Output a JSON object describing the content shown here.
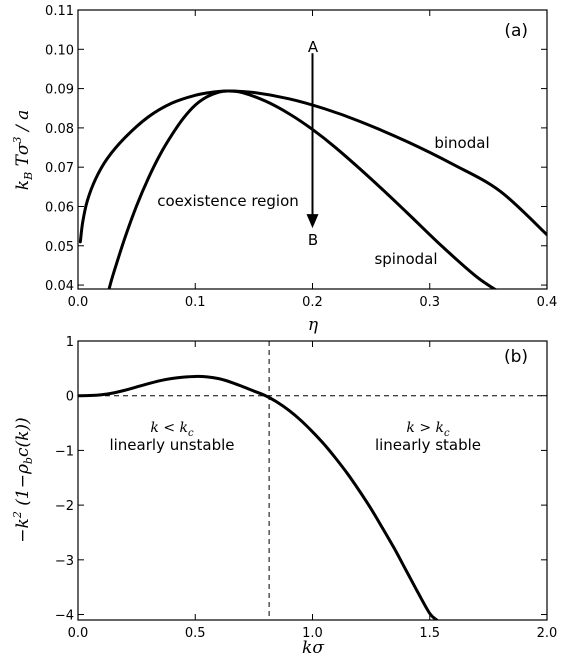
{
  "chart_data": [
    {
      "type": "line",
      "panel_label": "(a)",
      "xlabel": "η",
      "ylabel": "k_B T σ^3 / a",
      "xlim": [
        0.0,
        0.4
      ],
      "ylim": [
        0.039,
        0.11
      ],
      "xticks": [
        "0.0",
        "0.1",
        "0.2",
        "0.3",
        "0.4"
      ],
      "xtick_values": [
        0.0,
        0.1,
        0.2,
        0.3,
        0.4
      ],
      "yticks": [
        "0.04",
        "0.05",
        "0.06",
        "0.07",
        "0.08",
        "0.09",
        "0.10",
        "0.11"
      ],
      "ytick_values": [
        0.04,
        0.05,
        0.06,
        0.07,
        0.08,
        0.09,
        0.1,
        0.11
      ],
      "grid": false,
      "series": [
        {
          "name": "binodal",
          "x": [
            0.002,
            0.004,
            0.008,
            0.015,
            0.025,
            0.04,
            0.06,
            0.08,
            0.1,
            0.115,
            0.128,
            0.15,
            0.18,
            0.21,
            0.24,
            0.28,
            0.32,
            0.36,
            0.4
          ],
          "y": [
            0.051,
            0.056,
            0.0615,
            0.067,
            0.0722,
            0.0775,
            0.0828,
            0.0863,
            0.0883,
            0.0891,
            0.0894,
            0.089,
            0.0874,
            0.0849,
            0.0817,
            0.0766,
            0.0707,
            0.0639,
            0.0528
          ]
        },
        {
          "name": "spinodal",
          "x": [
            0.0265,
            0.03,
            0.04,
            0.05,
            0.06,
            0.07,
            0.08,
            0.09,
            0.1,
            0.11,
            0.12,
            0.128,
            0.14,
            0.16,
            0.18,
            0.2,
            0.22,
            0.25,
            0.28,
            0.31,
            0.34,
            0.36
          ],
          "y": [
            0.039,
            0.0427,
            0.052,
            0.0602,
            0.0672,
            0.0732,
            0.0782,
            0.0825,
            0.0858,
            0.0879,
            0.0891,
            0.0894,
            0.089,
            0.0868,
            0.0836,
            0.0796,
            0.0749,
            0.067,
            0.0586,
            0.05,
            0.0421,
            0.0381
          ]
        }
      ],
      "annotations": {
        "region_label": "coexistence region",
        "binodal_label": "binodal",
        "spinodal_label": "spinodal",
        "arrow_start_label": "A",
        "arrow_end_label": "B",
        "arrow_x": 0.2,
        "arrow_y_start": 0.099,
        "arrow_y_end": 0.0545
      }
    },
    {
      "type": "line",
      "panel_label": "(b)",
      "xlabel": "kσ",
      "ylabel": "−k² (1−ρ_b c(k))",
      "xlim": [
        0.0,
        2.0
      ],
      "ylim": [
        -4.1,
        1.0
      ],
      "xticks": [
        "0.0",
        "0.5",
        "1.0",
        "1.5",
        "2.0"
      ],
      "xtick_values": [
        0.0,
        0.5,
        1.0,
        1.5,
        2.0
      ],
      "yticks": [
        "−4",
        "−3",
        "−2",
        "−1",
        "0",
        "1"
      ],
      "ytick_values": [
        -4,
        -3,
        -2,
        -1,
        0,
        1
      ],
      "grid": false,
      "series": [
        {
          "name": "",
          "x": [
            0.0,
            0.05,
            0.1,
            0.15,
            0.2,
            0.25,
            0.3,
            0.35,
            0.4,
            0.45,
            0.5,
            0.55,
            0.6,
            0.65,
            0.7,
            0.75,
            0.8,
            0.85,
            0.9,
            0.95,
            1.0,
            1.05,
            1.1,
            1.15,
            1.2,
            1.25,
            1.3,
            1.35,
            1.4,
            1.45,
            1.5,
            1.53
          ],
          "y": [
            0.0,
            0.003,
            0.018,
            0.05,
            0.1,
            0.16,
            0.22,
            0.275,
            0.315,
            0.34,
            0.352,
            0.345,
            0.312,
            0.25,
            0.17,
            0.085,
            0.0,
            -0.12,
            -0.27,
            -0.45,
            -0.66,
            -0.89,
            -1.15,
            -1.43,
            -1.74,
            -2.07,
            -2.43,
            -2.8,
            -3.2,
            -3.6,
            -3.98,
            -4.1
          ]
        }
      ],
      "reference_lines": {
        "horizontal_y": 0.0,
        "vertical_x": 0.815
      },
      "annotations": {
        "left_condition": "k < k_c",
        "left_text": "linearly unstable",
        "right_condition": "k > k_c",
        "right_text": "linearly stable"
      }
    }
  ]
}
